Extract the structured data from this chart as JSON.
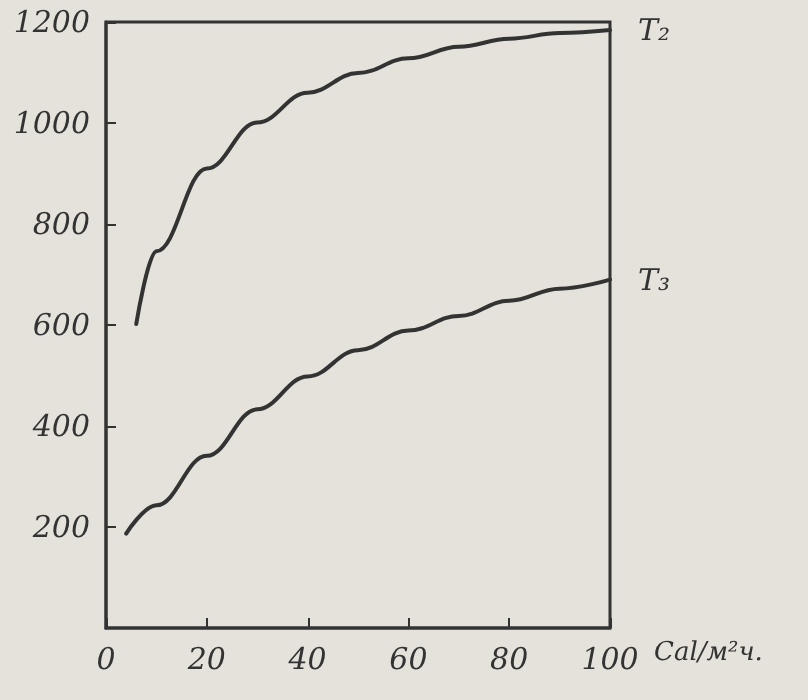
{
  "chart_data": {
    "type": "line",
    "xlabel": "Cal/м²ч.",
    "xlim": [
      0,
      100
    ],
    "xticks": [
      0,
      20,
      40,
      60,
      80,
      100
    ],
    "ylim": [
      0,
      1200
    ],
    "yticks": [
      200,
      400,
      600,
      800,
      1000,
      1200
    ],
    "grid": false,
    "legend": false,
    "marker": "none",
    "line_style": "solid",
    "series": [
      {
        "name": "T₂",
        "color": "#333333",
        "x": [
          6,
          10,
          20,
          30,
          40,
          50,
          60,
          70,
          80,
          90,
          100
        ],
        "values": [
          602,
          746,
          910,
          1001,
          1060,
          1099,
          1128,
          1151,
          1167,
          1178,
          1184
        ]
      },
      {
        "name": "T₃",
        "color": "#333333",
        "x": [
          4,
          10,
          20,
          30,
          40,
          50,
          60,
          70,
          80,
          90,
          100
        ],
        "values": [
          187,
          243,
          341,
          433,
          498,
          550,
          589,
          618,
          648,
          672,
          690
        ]
      }
    ]
  }
}
